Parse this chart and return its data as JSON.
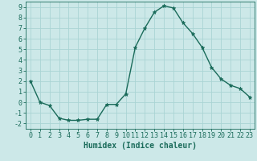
{
  "x": [
    0,
    1,
    2,
    3,
    4,
    5,
    6,
    7,
    8,
    9,
    10,
    11,
    12,
    13,
    14,
    15,
    16,
    17,
    18,
    19,
    20,
    21,
    22,
    23
  ],
  "y": [
    2,
    0,
    -0.3,
    -1.5,
    -1.7,
    -1.7,
    -1.6,
    -1.6,
    -0.2,
    -0.2,
    0.8,
    5.2,
    7.0,
    8.5,
    9.1,
    8.9,
    7.5,
    6.5,
    5.2,
    3.3,
    2.2,
    1.6,
    1.3,
    0.5
  ],
  "line_color": "#1a6b5a",
  "marker": "*",
  "marker_size": 3.5,
  "bg_color": "#cce8e8",
  "grid_color": "#aad4d4",
  "xlabel": "Humidex (Indice chaleur)",
  "xlim": [
    -0.5,
    23.5
  ],
  "ylim": [
    -2.5,
    9.5
  ],
  "yticks": [
    -2,
    -1,
    0,
    1,
    2,
    3,
    4,
    5,
    6,
    7,
    8,
    9
  ],
  "xticks": [
    0,
    1,
    2,
    3,
    4,
    5,
    6,
    7,
    8,
    9,
    10,
    11,
    12,
    13,
    14,
    15,
    16,
    17,
    18,
    19,
    20,
    21,
    22,
    23
  ],
  "tick_color": "#1a6b5a",
  "label_fontsize": 7,
  "tick_fontsize": 6
}
